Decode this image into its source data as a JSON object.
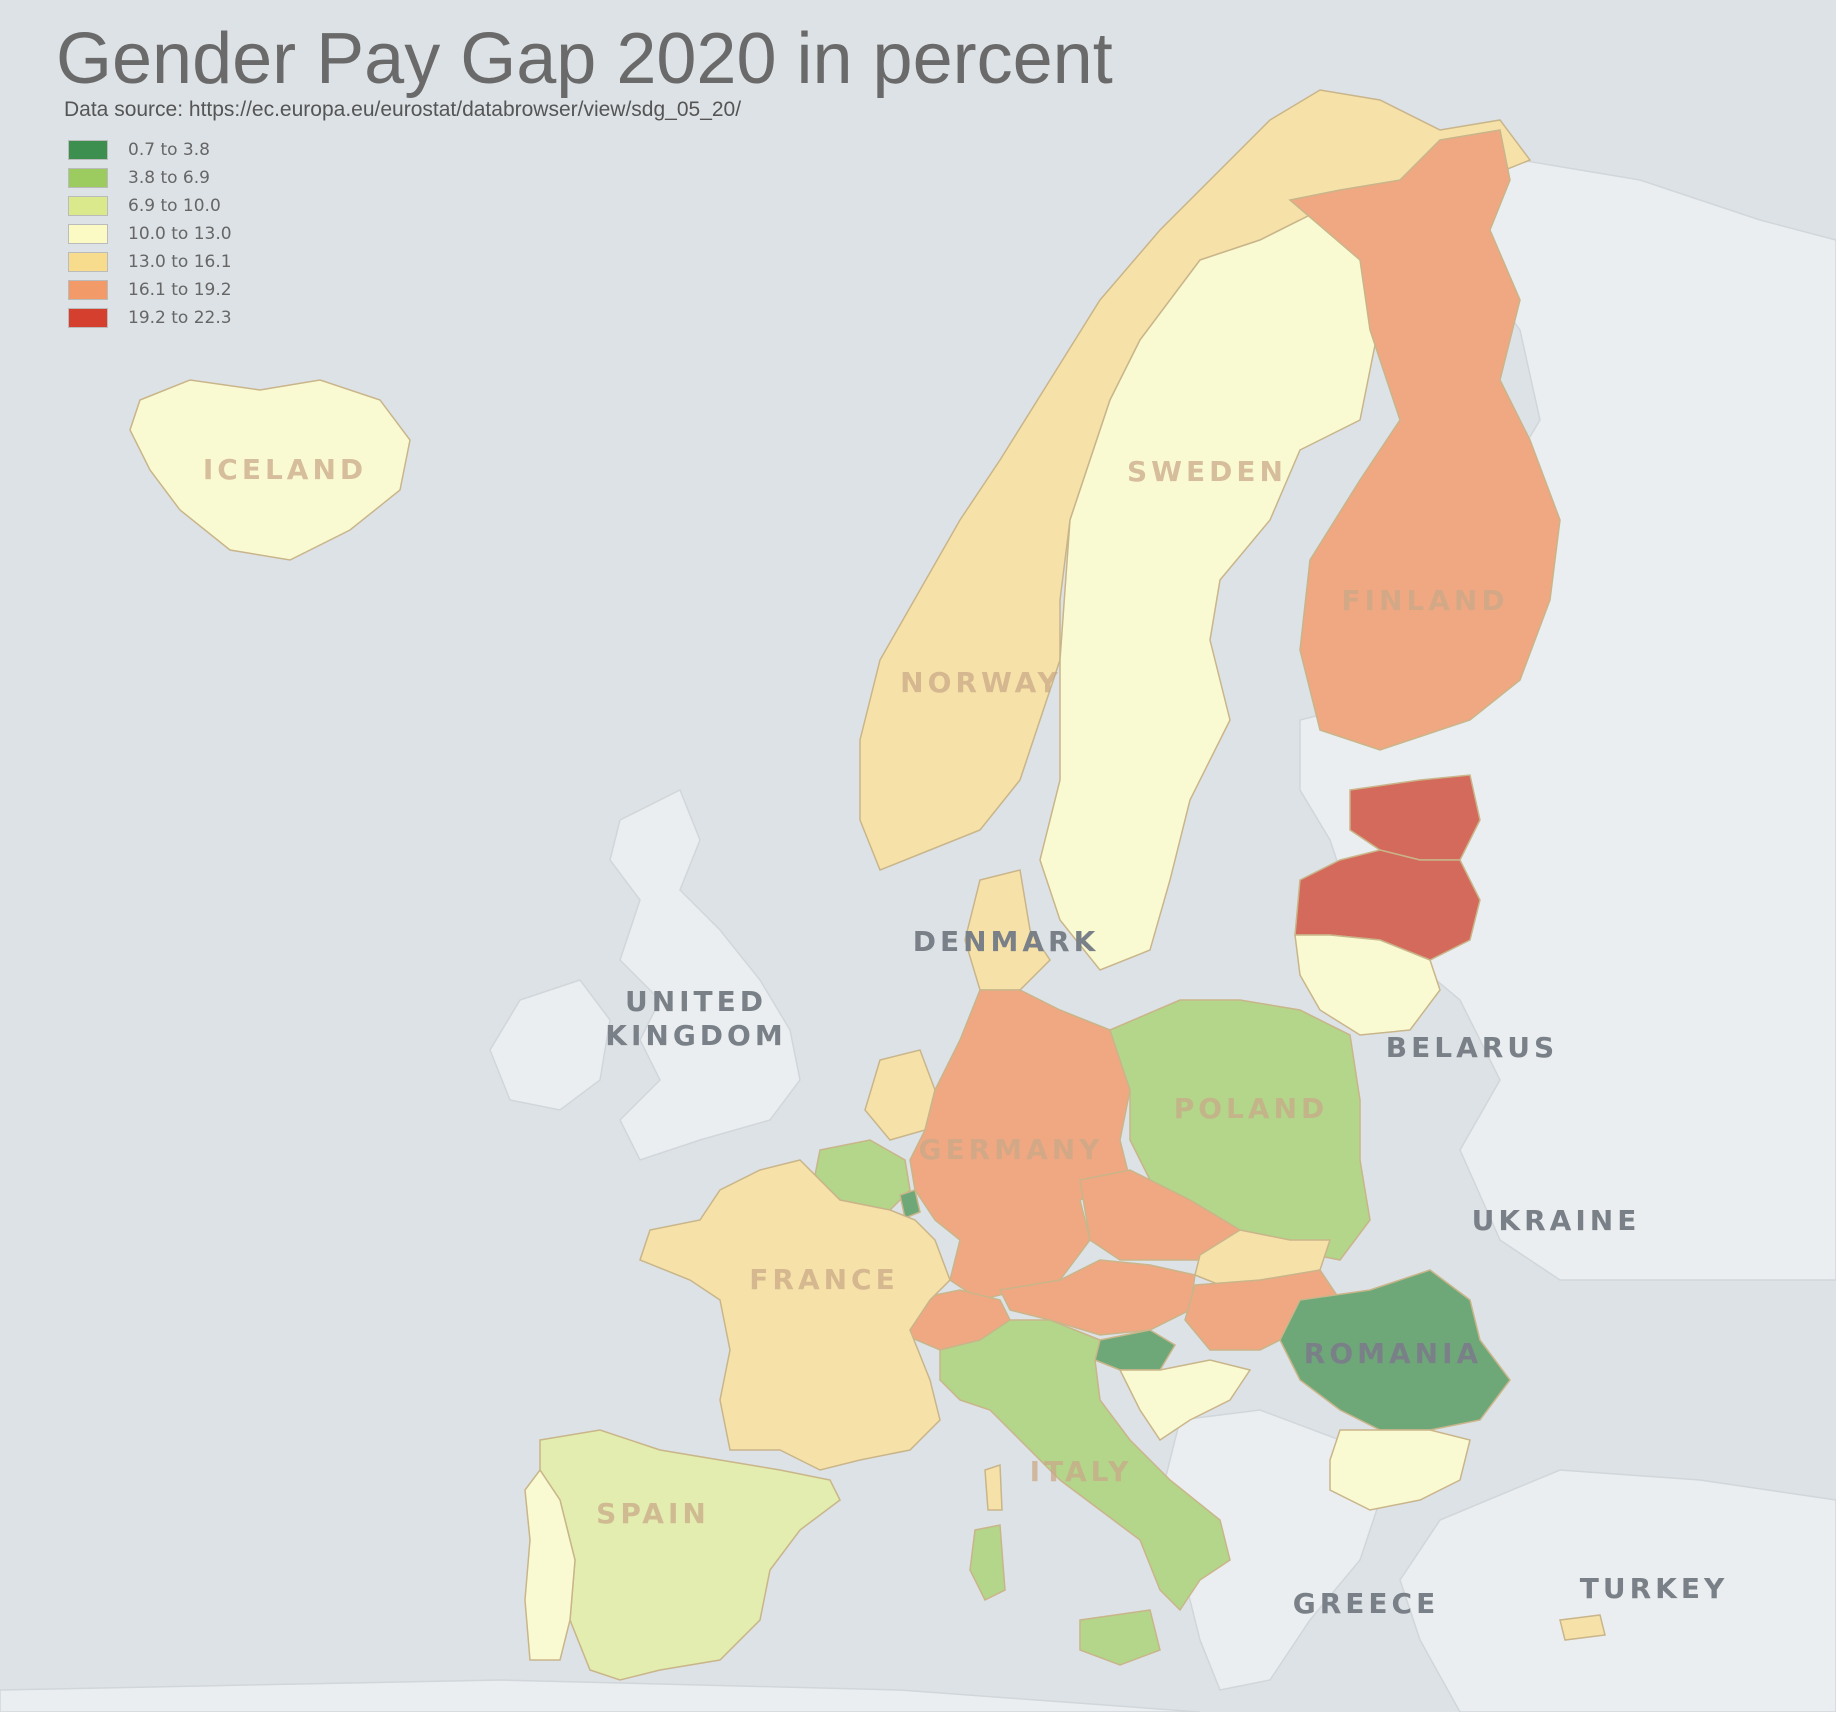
{
  "title": "Gender Pay Gap 2020 in percent",
  "source": "Data source: https://ec.europa.eu/eurostat/databrowser/view/sdg_05_20/",
  "legend": [
    {
      "label": "0.7 to 3.8",
      "color": "#3d8f4f"
    },
    {
      "label": "3.8 to 6.9",
      "color": "#9ccb5f"
    },
    {
      "label": "6.9 to 10.0",
      "color": "#d9e98c"
    },
    {
      "label": "10.0 to 13.0",
      "color": "#fbfac4"
    },
    {
      "label": "13.0 to 16.1",
      "color": "#f8dc8e"
    },
    {
      "label": "16.1 to 19.2",
      "color": "#f29a68"
    },
    {
      "label": "19.2 to 22.3",
      "color": "#d43f2e"
    }
  ],
  "colors": {
    "sea": "#dde2e6",
    "non_eu_land": "#ebeef0",
    "class_0": "#6ea878",
    "class_1": "#b3d68a",
    "class_2": "#e2edaf",
    "class_3": "#fafad2",
    "class_4": "#f6e2a8",
    "class_5": "#f0a882",
    "class_6": "#d46a5c"
  },
  "labels": {
    "iceland": "ICELAND",
    "sweden": "SWEDEN",
    "finland": "FINLAND",
    "norway": "NORWAY",
    "denmark": "DENMARK",
    "uk_1": "UNITED",
    "uk_2": "KINGDOM",
    "belarus": "BELARUS",
    "poland": "POLAND",
    "germany": "GERMANY",
    "ukraine": "UKRAINE",
    "france": "FRANCE",
    "romania": "ROMANIA",
    "italy": "ITALY",
    "spain": "SPAIN",
    "greece": "GREECE",
    "turkey": "TURKEY"
  }
}
